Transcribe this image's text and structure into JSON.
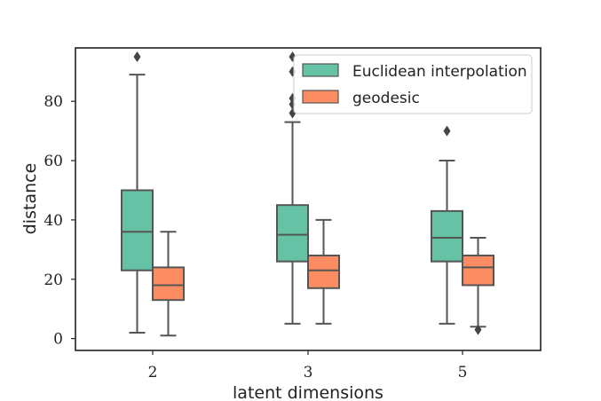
{
  "chart_data": {
    "type": "box",
    "title": "",
    "xlabel": "latent dimensions",
    "ylabel": "distance",
    "categories": [
      "2",
      "3",
      "5"
    ],
    "yticks": [
      0,
      20,
      40,
      60,
      80
    ],
    "ylim": [
      -4,
      98
    ],
    "grid": false,
    "legend_position": "top-right",
    "series": [
      {
        "name": "Euclidean interpolation",
        "color": "#66c2a5",
        "boxes": [
          {
            "whisker_low": 2,
            "q1": 23,
            "median": 36,
            "q3": 50,
            "whisker_high": 89,
            "outliers": [
              95
            ]
          },
          {
            "whisker_low": 5,
            "q1": 26,
            "median": 35,
            "q3": 45,
            "whisker_high": 73,
            "outliers": [
              76,
              79,
              81,
              90,
              95
            ]
          },
          {
            "whisker_low": 5,
            "q1": 26,
            "median": 34,
            "q3": 43,
            "whisker_high": 60,
            "outliers": [
              70
            ]
          }
        ]
      },
      {
        "name": "geodesic",
        "color": "#fc8d62",
        "boxes": [
          {
            "whisker_low": 1,
            "q1": 13,
            "median": 18,
            "q3": 24,
            "whisker_high": 36,
            "outliers": []
          },
          {
            "whisker_low": 5,
            "q1": 17,
            "median": 23,
            "q3": 28,
            "whisker_high": 40,
            "outliers": []
          },
          {
            "whisker_low": 4,
            "q1": 18,
            "median": 24,
            "q3": 28,
            "whisker_high": 34,
            "outliers": [
              3
            ]
          }
        ]
      }
    ]
  }
}
